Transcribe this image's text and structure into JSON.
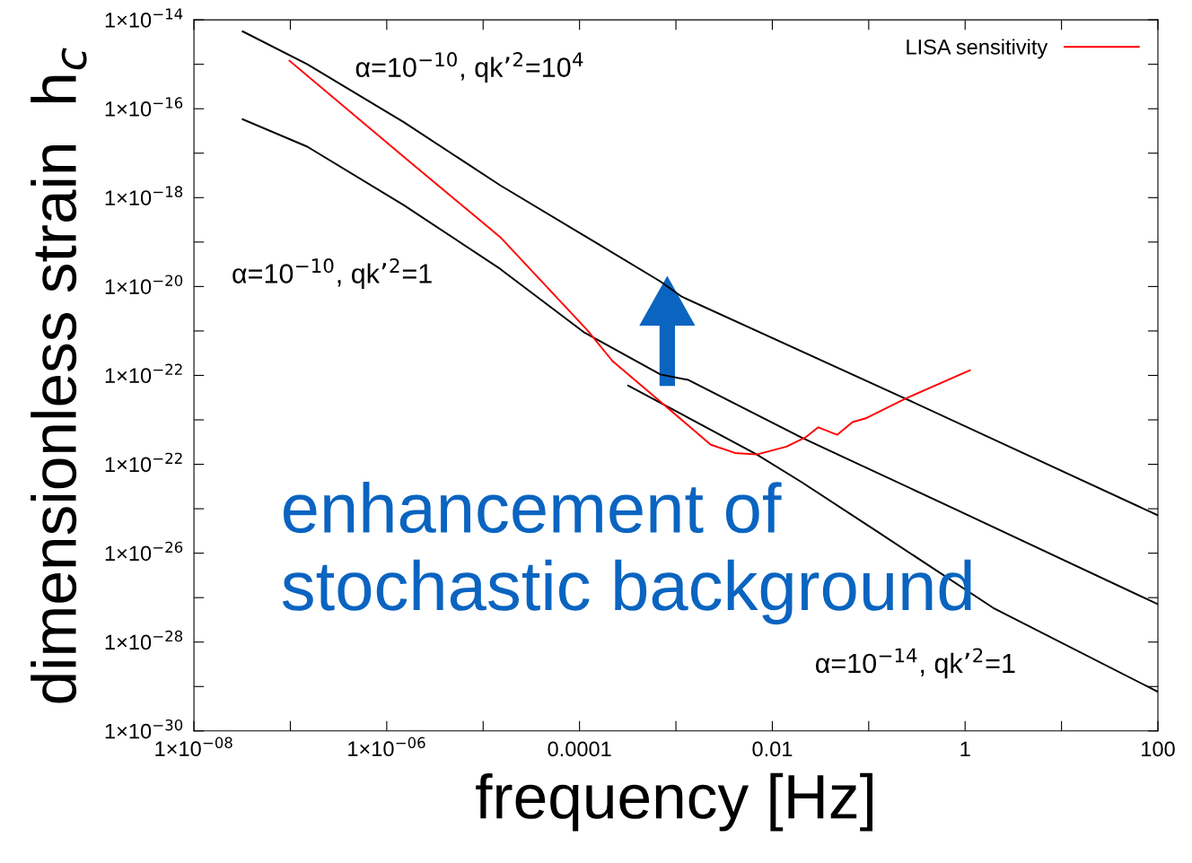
{
  "chart_data": {
    "type": "line",
    "xlabel": "frequency [Hz]",
    "ylabel": "dimensionless strain  h$_{c}$",
    "log": "xy",
    "legend": "top right",
    "grid": false,
    "marker": "none",
    "line_style": "solid",
    "xlim": [
      1e-08,
      100
    ],
    "ylim": [
      1e-30,
      1e-14
    ],
    "xticks": [
      {
        "value": 1e-08,
        "label": "1×10$^{−08}$"
      },
      {
        "value": 1e-07,
        "label": null
      },
      {
        "value": 1e-06,
        "label": "1×10$^{−06}$"
      },
      {
        "value": 1e-05,
        "label": null
      },
      {
        "value": 0.0001,
        "label": "0.0001"
      },
      {
        "value": 0.001,
        "label": null
      },
      {
        "value": 0.01,
        "label": "0.01"
      },
      {
        "value": 0.1,
        "label": null
      },
      {
        "value": 1,
        "label": "1"
      },
      {
        "value": 10,
        "label": null
      },
      {
        "value": 100,
        "label": "100"
      }
    ],
    "yticks": [
      {
        "value": 1e-30,
        "label": "1×10$^{−30}$"
      },
      {
        "value": 1e-29,
        "label": null
      },
      {
        "value": 1e-28,
        "label": "1×10$^{−28}$"
      },
      {
        "value": 1e-27,
        "label": null
      },
      {
        "value": 1e-26,
        "label": "1×10$^{−26}$"
      },
      {
        "value": 1e-25,
        "label": null
      },
      {
        "value": 1e-24,
        "label": "1×10$^{−22}$"
      },
      {
        "value": 1e-23,
        "label": null
      },
      {
        "value": 1e-22,
        "label": "1×10$^{−22}$"
      },
      {
        "value": 1e-21,
        "label": null
      },
      {
        "value": 1e-20,
        "label": "1×10$^{−20}$"
      },
      {
        "value": 1e-19,
        "label": null
      },
      {
        "value": 1e-18,
        "label": "1×10$^{−18}$"
      },
      {
        "value": 1e-17,
        "label": null
      },
      {
        "value": 1e-16,
        "label": "1×10$^{−16}$"
      },
      {
        "value": 1e-15,
        "label": null
      },
      {
        "value": 1e-14,
        "label": "1×10$^{−14}$"
      }
    ],
    "series": [
      {
        "color": "#000000",
        "x": [
          3.2e-08,
          1.5e-07,
          1.5e-06,
          1.5e-05,
          0.00015,
          0.00069,
          0.00115,
          0.24,
          100
        ],
        "values": [
          5.5e-15,
          1e-15,
          5e-17,
          1.9e-18,
          9.5e-20,
          1.3e-20,
          5.9e-21,
          3e-23,
          7.1e-26
        ]
      },
      {
        "color": "#000000",
        "x": [
          3.2e-08,
          1.5e-07,
          1.5e-06,
          1.5e-05,
          0.00011,
          0.00069,
          0.00135,
          0.02,
          0.79,
          100
        ],
        "values": [
          5.8e-17,
          1.4e-17,
          6.8e-19,
          2.5e-20,
          9.5e-22,
          1.05e-22,
          7.9e-23,
          4e-24,
          9.8e-26,
          7.1e-28
        ]
      },
      {
        "color": "#000000",
        "x": [
          0.00032,
          0.0069,
          0.02,
          0.126,
          1.95,
          100
        ],
        "values": [
          5.9e-23,
          1.66e-24,
          4e-25,
          2.95e-26,
          5.9e-28,
          7.6e-30
        ]
      },
      {
        "name": "LISA sensitivity",
        "color": "#ff0000",
        "x": [
          9.8e-08,
          1.5e-06,
          1.5e-05,
          0.00012,
          0.00022,
          0.00055,
          0.00135,
          0.0023,
          0.0041,
          0.0069,
          0.014,
          0.022,
          0.03,
          0.047,
          0.068,
          0.095,
          0.24,
          1.12
        ],
        "values": [
          1.2e-15,
          8.3e-18,
          1.3e-19,
          1.05e-21,
          2.1e-22,
          3.9e-23,
          7.4e-24,
          2.75e-24,
          1.8e-24,
          1.66e-24,
          2.5e-24,
          4e-24,
          6.8e-24,
          4.6e-24,
          8.9e-24,
          1.1e-23,
          3e-23,
          1.3e-22
        ]
      }
    ],
    "annotations": [
      "α=10$^{−10}$, qk’$^{2}$=10$^{4}$",
      "α=10$^{−10}$, qk’$^{2}$=1",
      "α=10$^{−14}$, qk’$^{2}$=1",
      "enhancement of\nstochastic background"
    ]
  }
}
